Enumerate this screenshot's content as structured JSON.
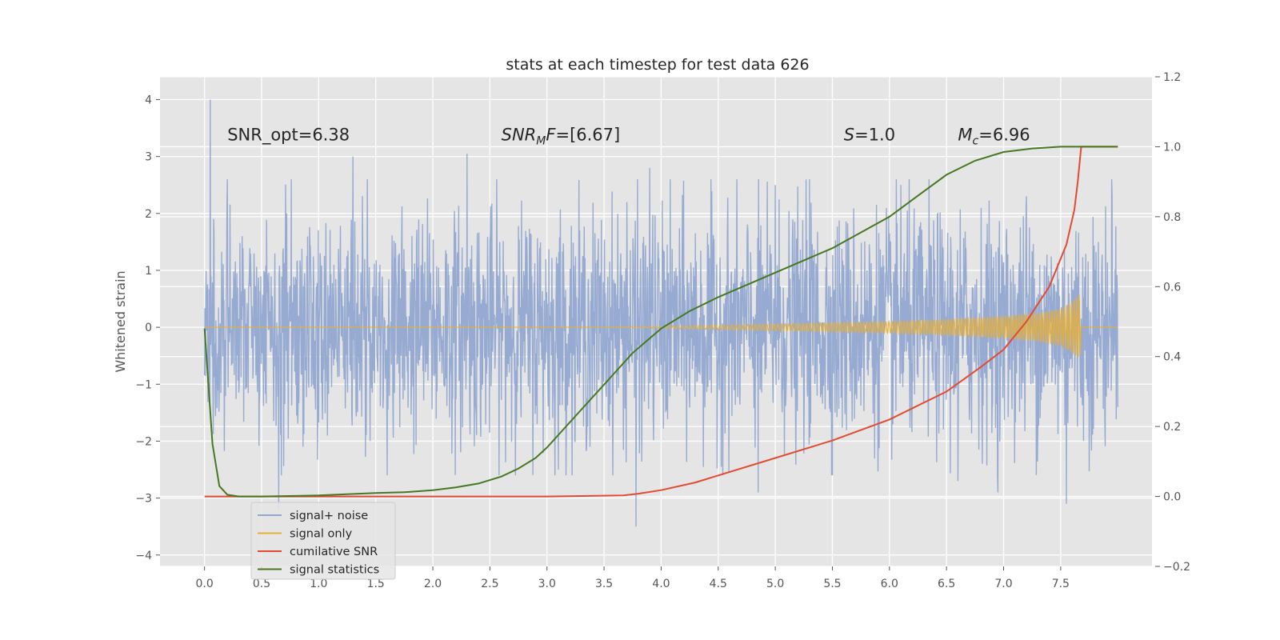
{
  "chart_data": {
    "type": "line",
    "title": "stats at each timestep for test data 626",
    "xlabel": "",
    "ylabel": "Whitened strain",
    "y2label": "",
    "xlim": [
      -0.39,
      8.3
    ],
    "ylim": [
      -4.2,
      4.4
    ],
    "y2lim": [
      -0.2,
      1.2
    ],
    "x_ticks": [
      0.0,
      0.5,
      1.0,
      1.5,
      2.0,
      2.5,
      3.0,
      3.5,
      4.0,
      4.5,
      5.0,
      5.5,
      6.0,
      6.5,
      7.0,
      7.5
    ],
    "x_tick_labels": [
      "0.0",
      "0.5",
      "1.0",
      "1.5",
      "2.0",
      "2.5",
      "3.0",
      "3.5",
      "4.0",
      "4.5",
      "5.0",
      "5.5",
      "6.0",
      "6.5",
      "7.0",
      "7.5"
    ],
    "y_ticks": [
      -4,
      -3,
      -2,
      -1,
      0,
      1,
      2,
      3,
      4
    ],
    "y_tick_labels": [
      "−4",
      "−3",
      "−2",
      "−1",
      "0",
      "1",
      "2",
      "3",
      "4"
    ],
    "y2_ticks": [
      -0.2,
      0.0,
      0.2,
      0.4,
      0.6,
      0.8,
      1.0,
      1.2
    ],
    "y2_tick_labels": [
      "−0.2",
      "0.0",
      "0.2",
      "0.4",
      "0.6",
      "0.8",
      "1.0",
      "1.2"
    ],
    "grid": true,
    "legend_position": "lower-left",
    "annotations": [
      {
        "text": "SNR_opt=6.38",
        "x": 0.2,
        "y": 3.2
      },
      {
        "text": "SNR_MF=[6.67]",
        "x": 2.6,
        "y": 3.2
      },
      {
        "text": "S=1.0",
        "x": 5.6,
        "y": 3.2
      },
      {
        "text": "M_c=6.96",
        "x": 6.6,
        "y": 3.2
      }
    ],
    "series": [
      {
        "name": "signal+ noise",
        "axis": "left",
        "color": "#92a8d1",
        "style": "noise",
        "x_range": [
          0.0,
          8.0
        ],
        "typical_amplitude": 1.6,
        "peaks": [
          [
            0.05,
            4.0
          ],
          [
            0.2,
            2.6
          ],
          [
            0.65,
            -3.2
          ],
          [
            0.72,
            2.0
          ],
          [
            1.3,
            3.0
          ],
          [
            1.6,
            -2.6
          ],
          [
            2.3,
            3.05
          ],
          [
            3.1,
            -2.5
          ],
          [
            3.7,
            2.2
          ],
          [
            3.78,
            -3.5
          ],
          [
            3.9,
            2.8
          ],
          [
            4.85,
            -2.9
          ],
          [
            5.0,
            2.5
          ],
          [
            5.3,
            2.6
          ],
          [
            6.1,
            2.5
          ],
          [
            6.6,
            -2.7
          ],
          [
            6.95,
            -2.9
          ],
          [
            7.2,
            2.3
          ],
          [
            7.55,
            -3.1
          ],
          [
            7.95,
            2.3
          ]
        ]
      },
      {
        "name": "signal only",
        "axis": "left",
        "color": "#e5ae38",
        "style": "chirp",
        "x": [
          0.0,
          3.5,
          4.0,
          4.5,
          5.0,
          5.5,
          6.0,
          6.5,
          7.0,
          7.3,
          7.5,
          7.6,
          7.67,
          7.68,
          8.0
        ],
        "envelope": [
          0.0,
          0.0,
          0.02,
          0.04,
          0.06,
          0.08,
          0.1,
          0.14,
          0.2,
          0.25,
          0.33,
          0.45,
          0.6,
          0.0,
          0.0
        ]
      },
      {
        "name": "cumilative SNR",
        "axis": "right",
        "color": "#e24a33",
        "x": [
          0.0,
          1.0,
          2.0,
          3.0,
          3.67,
          3.8,
          4.0,
          4.3,
          4.5,
          5.0,
          5.5,
          6.0,
          6.5,
          6.8,
          7.0,
          7.2,
          7.4,
          7.55,
          7.62,
          7.65,
          7.68,
          8.0
        ],
        "y": [
          0.0,
          0.0,
          0.0,
          0.0,
          0.003,
          0.008,
          0.018,
          0.04,
          0.06,
          0.11,
          0.16,
          0.22,
          0.3,
          0.37,
          0.42,
          0.5,
          0.6,
          0.72,
          0.82,
          0.9,
          1.0,
          1.0
        ]
      },
      {
        "name": "signal statistics",
        "axis": "right",
        "color": "#467821",
        "x": [
          0.0,
          0.07,
          0.13,
          0.2,
          0.3,
          0.5,
          1.0,
          1.5,
          1.75,
          2.0,
          2.2,
          2.4,
          2.6,
          2.75,
          2.9,
          3.0,
          3.25,
          3.5,
          3.75,
          4.0,
          4.25,
          4.5,
          5.0,
          5.5,
          6.0,
          6.25,
          6.5,
          6.75,
          7.0,
          7.25,
          7.5,
          7.68,
          8.0
        ],
        "y": [
          0.48,
          0.15,
          0.03,
          0.005,
          0.0,
          0.0,
          0.003,
          0.01,
          0.012,
          0.018,
          0.026,
          0.037,
          0.057,
          0.08,
          0.11,
          0.14,
          0.23,
          0.32,
          0.41,
          0.48,
          0.53,
          0.57,
          0.64,
          0.71,
          0.8,
          0.86,
          0.92,
          0.96,
          0.985,
          0.995,
          1.0,
          1.0,
          1.0
        ]
      }
    ]
  }
}
